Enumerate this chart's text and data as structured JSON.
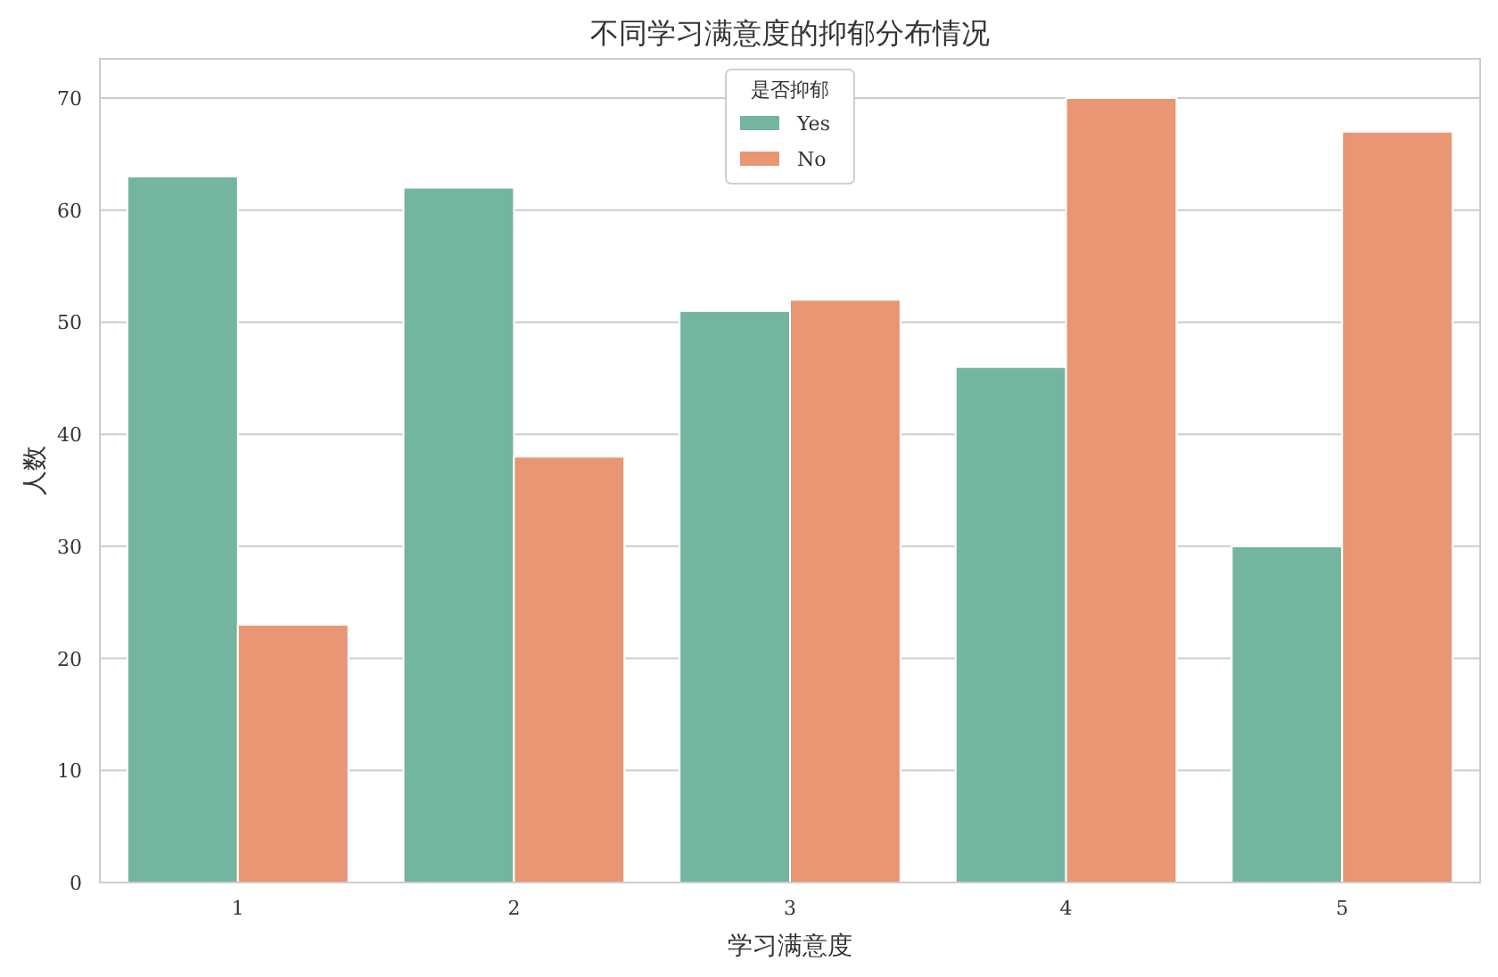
{
  "chart_data": {
    "type": "bar",
    "title": "不同学习满意度的抑郁分布情况",
    "xlabel": "学习满意度",
    "ylabel": "人数",
    "legend_title": "是否抑郁",
    "categories": [
      "1",
      "2",
      "3",
      "4",
      "5"
    ],
    "series": [
      {
        "name": "Yes",
        "color": "#73b5a0",
        "values": [
          63,
          62,
          51,
          46,
          30
        ]
      },
      {
        "name": "No",
        "color": "#e89673",
        "values": [
          23,
          38,
          52,
          70,
          67
        ]
      }
    ],
    "ylim": [
      0,
      73.5
    ],
    "yticks": [
      0,
      10,
      20,
      30,
      40,
      50,
      60,
      70
    ],
    "grid": "y",
    "legend": "top"
  }
}
